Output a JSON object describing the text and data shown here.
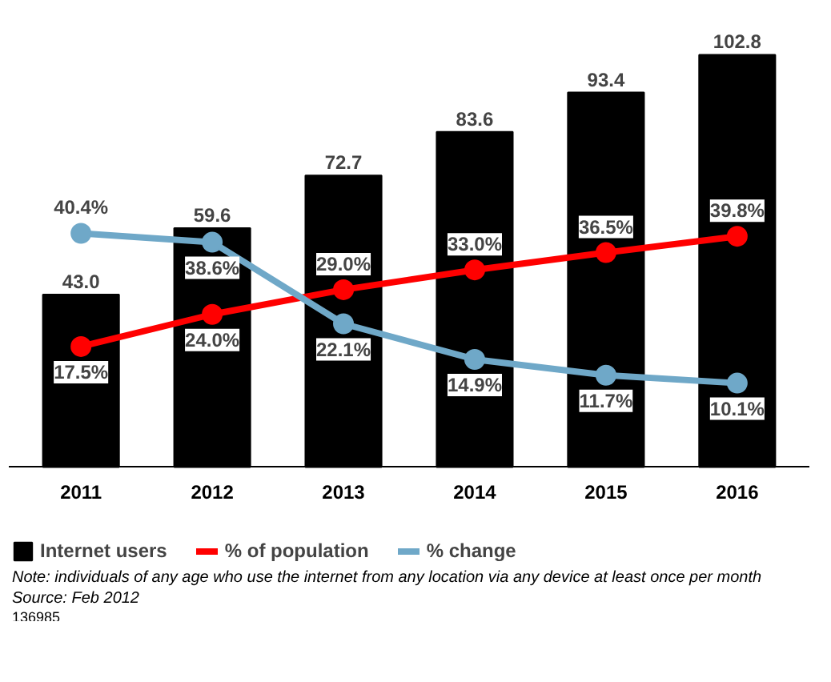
{
  "chart_data": {
    "type": "bar",
    "categories": [
      "2011",
      "2012",
      "2013",
      "2014",
      "2015",
      "2016"
    ],
    "series": [
      {
        "name": "Internet users",
        "color": "#000000",
        "values": [
          43.0,
          59.6,
          72.7,
          83.6,
          93.4,
          102.8
        ],
        "value_labels": [
          "43.0",
          "59.6",
          "72.7",
          "83.6",
          "93.4",
          "102.8"
        ]
      },
      {
        "name": "% of population",
        "type": "line",
        "axis": "y2",
        "color": "#ff0000",
        "values": [
          17.5,
          24.0,
          29.0,
          33.0,
          36.5,
          39.8
        ],
        "value_labels": [
          "17.5%",
          "24.0%",
          "29.0%",
          "33.0%",
          "36.5%",
          "39.8%"
        ]
      },
      {
        "name": "% change",
        "type": "line",
        "axis": "y2",
        "color": "#6fa8c8",
        "values": [
          40.4,
          38.6,
          22.1,
          14.9,
          11.7,
          10.1
        ],
        "value_labels": [
          "40.4%",
          "38.6%",
          "22.1%",
          "14.9%",
          "11.7%",
          "10.1%"
        ]
      }
    ],
    "tick_labels": "x",
    "grid": false,
    "legend": "bottom",
    "marker": "circle",
    "line_style": "solid",
    "annotations": [
      "Note: individuals of any age who use the internet from any location via any device at least once per month",
      "Source: Feb 2012",
      "136985"
    ]
  }
}
